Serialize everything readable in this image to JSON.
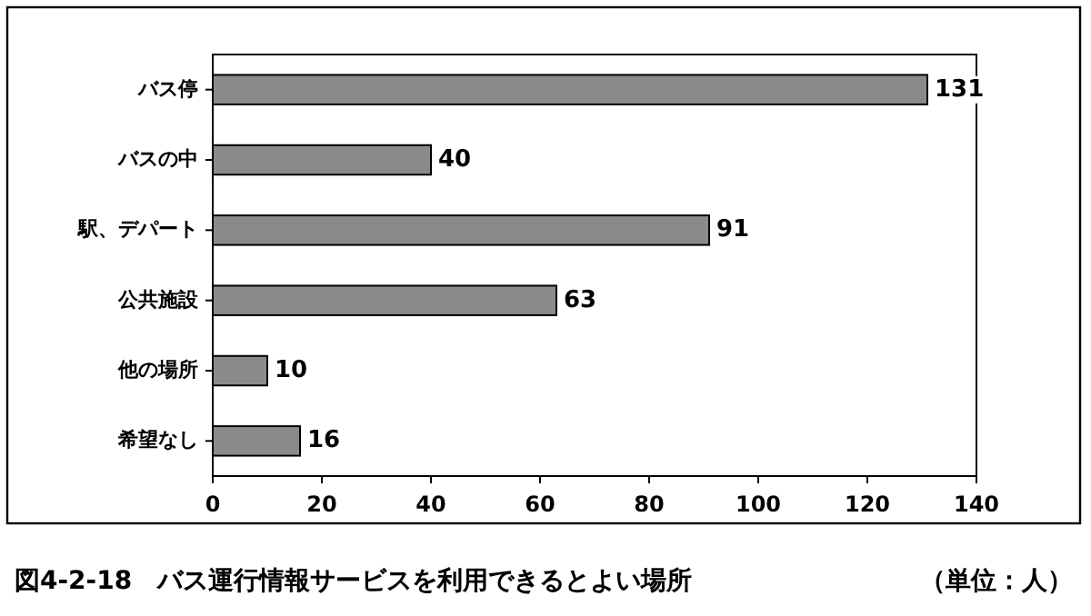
{
  "chart_data": {
    "type": "bar",
    "orientation": "horizontal",
    "title": "図4-2-18　バス運行情報サービスを利用できるとよい場所",
    "annotations": [
      "（単位：人）"
    ],
    "categories": [
      "バス停",
      "バスの中",
      "駅、デパート",
      "公共施設",
      "他の場所",
      "希望なし"
    ],
    "values": [
      131,
      40,
      91,
      63,
      10,
      16
    ],
    "color": "#8a8a8a",
    "xlim": [
      0,
      140
    ],
    "xticks": [
      0,
      20,
      40,
      60,
      80,
      100,
      120,
      140
    ],
    "data_labels": true,
    "grid": false
  }
}
